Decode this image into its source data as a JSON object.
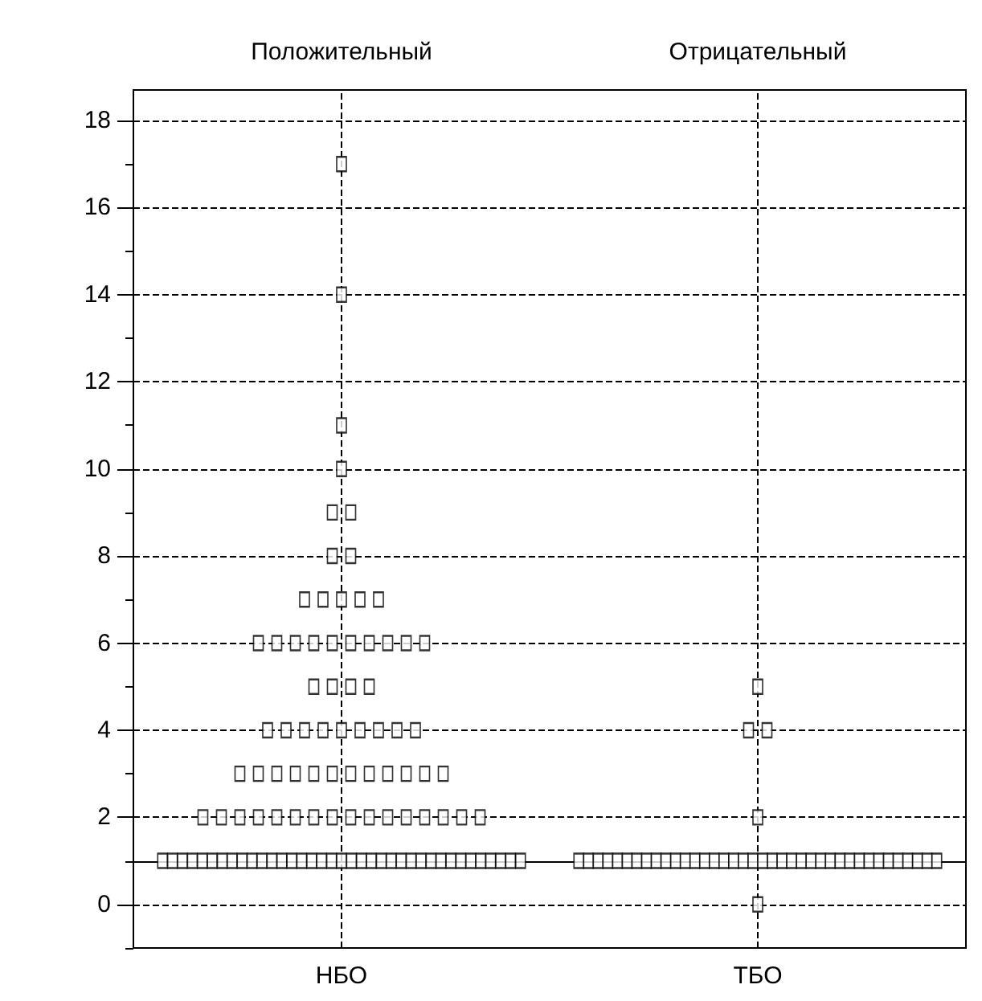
{
  "chart_data": {
    "type": "scatter",
    "categories": [
      "НБО",
      "ТБО"
    ],
    "annotations": [
      "Положительный",
      "Отрицательный"
    ],
    "series": [
      {
        "color": "#000000",
        "x": [
          "НБО",
          "НБО",
          "НБО",
          "НБО",
          "НБО",
          "НБО",
          "НБО",
          "НБО",
          "НБО",
          "НБО",
          "НБО",
          "НБО",
          "НБО",
          "НБО",
          "НБО",
          "НБО",
          "НБО",
          "НБО",
          "НБО",
          "НБО",
          "НБО",
          "НБО",
          "НБО",
          "НБО",
          "НБО",
          "НБО",
          "НБО",
          "НБО",
          "НБО",
          "НБО",
          "НБО",
          "НБО",
          "НБО",
          "НБО",
          "НБО",
          "НБО",
          "НБО",
          "НБО",
          "НБО",
          "НБО",
          "НБО",
          "НБО",
          "НБО",
          "НБО",
          "НБО",
          "НБО",
          "НБО",
          "НБО",
          "НБО",
          "НБО",
          "НБО",
          "НБО",
          "НБО",
          "НБО",
          "НБО",
          "НБО",
          "НБО",
          "НБО",
          "НБО",
          "НБО",
          "НБО",
          "НБО",
          "НБО",
          "НБО",
          "НБО",
          "НБО",
          "НБО",
          "НБО",
          "НБО",
          "НБО",
          "НБО",
          "НБО",
          "НБО",
          "НБО",
          "НБО",
          "НБО",
          "НБО",
          "НБО",
          "НБО",
          "НБО",
          "НБО",
          "НБО",
          "НБО",
          "НБО",
          "НБО",
          "НБО",
          "НБО",
          "НБО",
          "НБО",
          "НБО",
          "НБО",
          "НБО",
          "НБО",
          "НБО",
          "НБО",
          "НБО",
          "НБО",
          "НБО",
          "НБО",
          "НБО",
          "НБО"
        ],
        "values": [
          17,
          14,
          11,
          10,
          9,
          9,
          8,
          8,
          7,
          7,
          7,
          7,
          7,
          6,
          6,
          6,
          6,
          6,
          6,
          6,
          6,
          6,
          6,
          5,
          5,
          5,
          5,
          4,
          4,
          4,
          4,
          4,
          4,
          4,
          4,
          4,
          3,
          3,
          3,
          3,
          3,
          3,
          3,
          3,
          3,
          3,
          3,
          3,
          2,
          2,
          2,
          2,
          2,
          2,
          2,
          2,
          2,
          2,
          2,
          2,
          2,
          2,
          2,
          2,
          1,
          1,
          1,
          1,
          1,
          1,
          1,
          1,
          1,
          1,
          1,
          1,
          1,
          1,
          1,
          1,
          1,
          1,
          1,
          1,
          1,
          1,
          1,
          1,
          1,
          1,
          1,
          1,
          1,
          1,
          1,
          1,
          1,
          1,
          1,
          1,
          1
        ]
      },
      {
        "color": "#000000",
        "x": [
          "ТБО",
          "ТБО",
          "ТБО",
          "ТБО",
          "ТБО",
          "ТБО",
          "ТБО",
          "ТБО",
          "ТБО",
          "ТБО",
          "ТБО",
          "ТБО",
          "ТБО",
          "ТБО",
          "ТБО",
          "ТБО",
          "ТБО",
          "ТБО",
          "ТБО",
          "ТБО",
          "ТБО",
          "ТБО",
          "ТБО",
          "ТБО",
          "ТБО",
          "ТБО",
          "ТБО",
          "ТБО",
          "ТБО",
          "ТБО",
          "ТБО",
          "ТБО",
          "ТБО",
          "ТБО",
          "ТБО",
          "ТБО",
          "ТБО",
          "ТБО",
          "ТБО",
          "ТБО",
          "ТБО",
          "ТБО",
          "ТБО"
        ],
        "values": [
          5,
          4,
          4,
          2,
          1,
          1,
          1,
          1,
          1,
          1,
          1,
          1,
          1,
          1,
          1,
          1,
          1,
          1,
          1,
          1,
          1,
          1,
          1,
          1,
          1,
          1,
          1,
          1,
          1,
          1,
          1,
          1,
          1,
          1,
          1,
          1,
          1,
          1,
          1,
          1,
          1,
          1,
          0
        ]
      }
    ],
    "ref_lines": [
      {
        "axis": "y",
        "value": 1,
        "color": "#000000",
        "line_style": "solid"
      }
    ],
    "ylim": [
      -1,
      18.7
    ],
    "yticks": [
      0,
      2,
      4,
      6,
      8,
      10,
      12,
      14,
      16,
      18
    ],
    "grid": true,
    "marker": "square",
    "line_style": "dashed"
  }
}
